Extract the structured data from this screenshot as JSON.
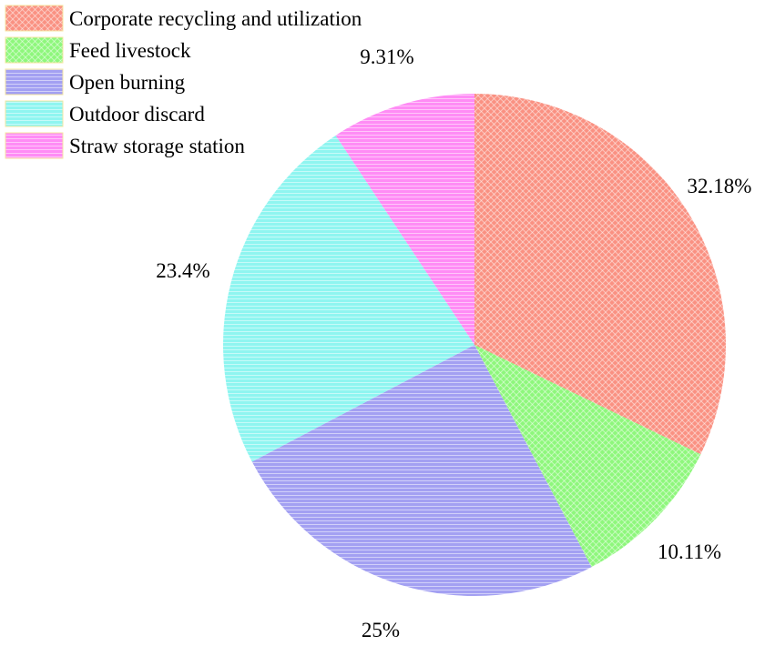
{
  "chart_data": {
    "type": "pie",
    "title": "",
    "slices": [
      {
        "label": "Corporate recycling and utilization",
        "value": 32.18,
        "display": "32.18%",
        "color": "#fa9182",
        "pattern": "crosshatch"
      },
      {
        "label": "Feed livestock",
        "value": 10.11,
        "display": "10.11%",
        "color": "#8ef77c",
        "pattern": "crosshatch"
      },
      {
        "label": "Open burning",
        "value": 25.0,
        "display": "25%",
        "color": "#a3a0f2",
        "pattern": "horizontal"
      },
      {
        "label": "Outdoor discard",
        "value": 23.4,
        "display": "23.4%",
        "color": "#8ff5f0",
        "pattern": "horizontal"
      },
      {
        "label": "Straw storage station",
        "value": 9.31,
        "display": "9.31%",
        "color": "#ff8cf5",
        "pattern": "horizontal"
      }
    ],
    "start_angle": "12 o'clock",
    "direction": "clockwise",
    "legend_position": "top-left"
  }
}
